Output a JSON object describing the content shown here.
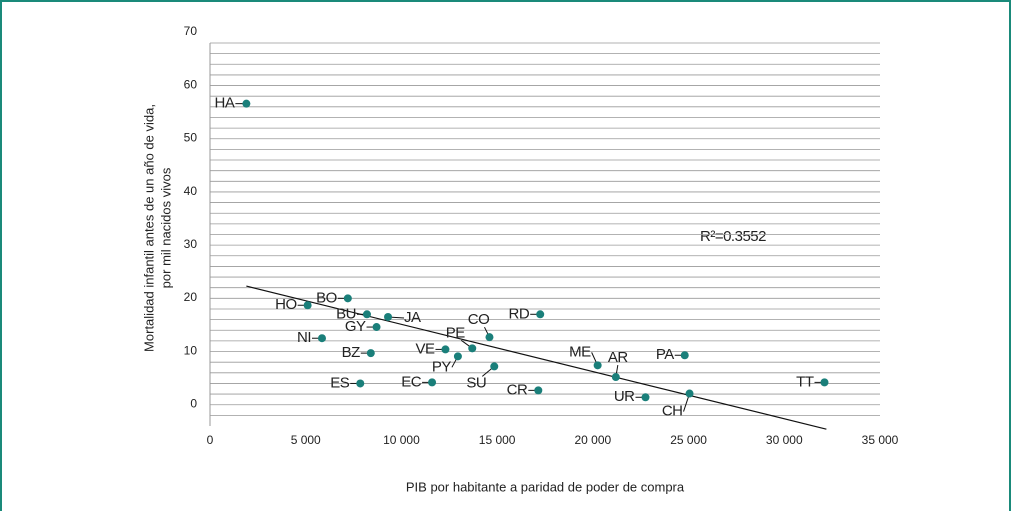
{
  "chart_data": {
    "type": "scatter",
    "ylabel": [
      "Mortalidad infantil antes de un año de vida,",
      "por mil nacidos vivos"
    ],
    "xlabel": "PIB por habitante a paridad de poder de compra",
    "annotation": "R²=0.3552",
    "color": "#1a7f7a",
    "points": [
      {
        "label": "HA",
        "x": 1900,
        "y": 58.6
      },
      {
        "label": "HO",
        "x": 5100,
        "y": 20.7
      },
      {
        "label": "BO",
        "x": 7200,
        "y": 22.0
      },
      {
        "label": "BU",
        "x": 8200,
        "y": 19.0
      },
      {
        "label": "JA",
        "x": 9300,
        "y": 18.5
      },
      {
        "label": "GY",
        "x": 8700,
        "y": 16.6
      },
      {
        "label": "NI",
        "x": 5850,
        "y": 14.5
      },
      {
        "label": "BZ",
        "x": 8400,
        "y": 11.7
      },
      {
        "label": "ES",
        "x": 7850,
        "y": 6.0
      },
      {
        "label": "EC",
        "x": 11600,
        "y": 6.2
      },
      {
        "label": "VE",
        "x": 12300,
        "y": 12.4
      },
      {
        "label": "PE",
        "x": 13700,
        "y": 12.6
      },
      {
        "label": "PY",
        "x": 12950,
        "y": 11.1
      },
      {
        "label": "CO",
        "x": 14600,
        "y": 14.7
      },
      {
        "label": "SU",
        "x": 14850,
        "y": 9.2
      },
      {
        "label": "RD",
        "x": 17250,
        "y": 19.0
      },
      {
        "label": "CR",
        "x": 17150,
        "y": 4.7
      },
      {
        "label": "ME",
        "x": 20250,
        "y": 9.4
      },
      {
        "label": "AR",
        "x": 21200,
        "y": 7.2
      },
      {
        "label": "UR",
        "x": 22750,
        "y": 3.4
      },
      {
        "label": "CH",
        "x": 25050,
        "y": 4.1
      },
      {
        "label": "PA",
        "x": 24800,
        "y": 11.3
      },
      {
        "label": "TT",
        "x": 32100,
        "y": 6.2
      }
    ],
    "trendline": {
      "x": [
        1900,
        32200
      ],
      "y": [
        24.3,
        -2.6
      ]
    },
    "xlim": [
      0,
      35000
    ],
    "xticks": [
      0,
      {
        "value": 5000,
        "label": "5 000"
      },
      {
        "value": 10000,
        "label": "10 000"
      },
      {
        "value": 15000,
        "label": "15 000"
      },
      {
        "value": 20000,
        "label": "20 000"
      },
      {
        "value": 25000,
        "label": "25 000"
      },
      {
        "value": 30000,
        "label": "30 000"
      },
      {
        "value": 35000,
        "label": "35 000"
      }
    ],
    "ylim": [
      -2,
      70
    ],
    "yticks": [
      0,
      10,
      20,
      30,
      40,
      50,
      60,
      70
    ],
    "minor_yticks": [
      2,
      4,
      6,
      8,
      12,
      14,
      16,
      18,
      22,
      24,
      26,
      28,
      32,
      34,
      36,
      38,
      42,
      44,
      46,
      48,
      52,
      54,
      56,
      58,
      62,
      64,
      66,
      68
    ],
    "grid": true
  }
}
